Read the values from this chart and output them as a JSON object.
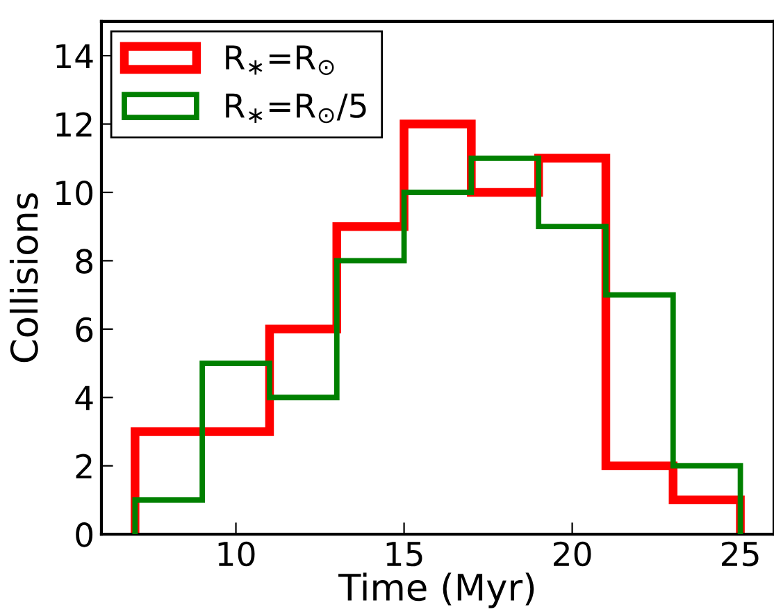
{
  "chart_data": {
    "type": "histogram",
    "xlabel": "Time (Myr)",
    "ylabel": "Collisions",
    "bins": [
      7,
      9,
      11,
      13,
      15,
      17,
      19,
      21,
      23,
      25
    ],
    "series": [
      {
        "name": "R$_{∗}$=R$_{⊙}$",
        "color": "#ff0000",
        "values": [
          3,
          3,
          6,
          9,
          12,
          10,
          11,
          2,
          1
        ]
      },
      {
        "name": "R$_{∗}$=R$_{⊙}$/5",
        "color": "#008000",
        "values": [
          1,
          5,
          4,
          8,
          10,
          11,
          9,
          7,
          2
        ]
      }
    ],
    "xlim": [
      6,
      26
    ],
    "xticks": [
      10,
      15,
      20,
      25
    ],
    "ylim": [
      0,
      15
    ],
    "yticks": [
      0,
      2,
      4,
      6,
      8,
      10,
      12,
      14
    ],
    "legend": "top left",
    "grid": false
  }
}
